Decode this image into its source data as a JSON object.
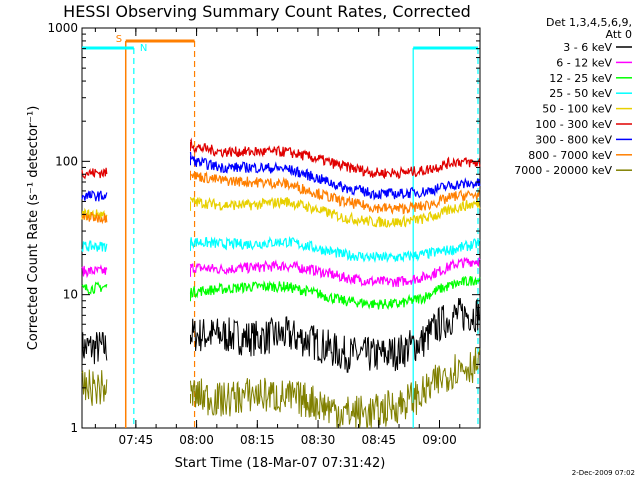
{
  "chart_data": {
    "type": "line",
    "title": "HESSI Observing Summary Count Rates, Corrected",
    "xlabel": "Start Time (18-Mar-07 07:31:42)",
    "ylabel": "Corrected Count Rate (s⁻¹ detector⁻¹)",
    "yscale": "log",
    "ylim": [
      1,
      1000
    ],
    "xlim": [
      "07:31:42",
      "09:10:00"
    ],
    "x_ticks": [
      "07:45",
      "08:00",
      "08:15",
      "08:30",
      "08:45",
      "09:00"
    ],
    "y_ticks": [
      "1",
      "10",
      "100",
      "1000"
    ],
    "legend_position": "top-right",
    "legend_header": [
      "Det 1,3,4,5,6,9,",
      "Att 0"
    ],
    "series": [
      {
        "name": "3 - 6 keV",
        "color": "#000000",
        "x": [
          "07:31:42",
          "07:38:00",
          "07:58:30",
          "08:06:00",
          "08:14:00",
          "08:22:00",
          "08:28:00",
          "08:36:00",
          "08:44:00",
          "08:50:00",
          "08:56:00",
          "09:00:00",
          "09:04:00",
          "09:09:00"
        ],
        "y": [
          4.0,
          4.0,
          5.0,
          5.0,
          4.7,
          5.0,
          4.5,
          3.6,
          3.5,
          3.7,
          4.5,
          6.0,
          7.0,
          7.2
        ]
      },
      {
        "name": "6 - 12 keV",
        "color": "#ff00ff",
        "x": [
          "07:31:42",
          "07:38:00",
          "07:58:30",
          "08:06:00",
          "08:14:00",
          "08:22:00",
          "08:28:00",
          "08:36:00",
          "08:44:00",
          "08:50:00",
          "08:56:00",
          "09:00:00",
          "09:04:00",
          "09:09:00"
        ],
        "y": [
          15,
          15,
          16,
          15.5,
          16,
          16.5,
          15.5,
          13.5,
          12.5,
          12.5,
          13.5,
          15,
          17,
          18
        ]
      },
      {
        "name": "12 - 25 keV",
        "color": "#00ff00",
        "x": [
          "07:31:42",
          "07:38:00",
          "07:58:30",
          "08:06:00",
          "08:14:00",
          "08:22:00",
          "08:28:00",
          "08:36:00",
          "08:44:00",
          "08:50:00",
          "08:56:00",
          "09:00:00",
          "09:04:00",
          "09:09:00"
        ],
        "y": [
          11,
          11.5,
          10.5,
          11,
          11.5,
          11.5,
          10.5,
          9,
          8.5,
          8.5,
          9.5,
          11,
          12,
          13
        ]
      },
      {
        "name": "25 - 50 keV",
        "color": "#00ffff",
        "x": [
          "07:31:42",
          "07:38:00",
          "07:58:30",
          "08:06:00",
          "08:14:00",
          "08:22:00",
          "08:28:00",
          "08:36:00",
          "08:44:00",
          "08:50:00",
          "08:56:00",
          "09:00:00",
          "09:04:00",
          "09:09:00"
        ],
        "y": [
          23,
          23,
          25,
          24,
          24,
          25,
          23,
          20,
          19,
          19,
          20,
          21,
          22,
          24
        ]
      },
      {
        "name": "50 - 100 keV",
        "color": "#e8d000",
        "x": [
          "07:31:42",
          "07:38:00",
          "07:58:30",
          "08:06:00",
          "08:14:00",
          "08:22:00",
          "08:28:00",
          "08:36:00",
          "08:44:00",
          "08:50:00",
          "08:56:00",
          "09:00:00",
          "09:04:00",
          "09:09:00"
        ],
        "y": [
          40,
          40,
          50,
          47,
          47,
          50,
          45,
          38,
          35,
          35,
          37,
          40,
          45,
          48
        ]
      },
      {
        "name": "100 - 300 keV",
        "color": "#e00000",
        "x": [
          "07:31:42",
          "07:38:00",
          "07:58:30",
          "07:59:30",
          "08:06:00",
          "08:14:00",
          "08:22:00",
          "08:28:00",
          "08:36:00",
          "08:44:00",
          "08:50:00",
          "08:56:00",
          "09:00:00",
          "09:04:00",
          "09:09:00"
        ],
        "y": [
          82,
          82,
          140,
          128,
          118,
          118,
          118,
          108,
          92,
          82,
          82,
          85,
          92,
          100,
          97
        ]
      },
      {
        "name": "300 - 800 keV",
        "color": "#0000ff",
        "x": [
          "07:31:42",
          "07:38:00",
          "07:58:30",
          "07:59:30",
          "08:06:00",
          "08:14:00",
          "08:22:00",
          "08:28:00",
          "08:36:00",
          "08:44:00",
          "08:50:00",
          "08:56:00",
          "09:00:00",
          "09:04:00",
          "09:09:00"
        ],
        "y": [
          55,
          55,
          110,
          100,
          90,
          90,
          88,
          78,
          64,
          57,
          57,
          59,
          63,
          67,
          68
        ]
      },
      {
        "name": "800 - 7000 keV",
        "color": "#ff7f00",
        "x": [
          "07:31:42",
          "07:38:00",
          "07:58:30",
          "07:59:30",
          "08:06:00",
          "08:14:00",
          "08:22:00",
          "08:28:00",
          "08:36:00",
          "08:44:00",
          "08:50:00",
          "08:56:00",
          "09:00:00",
          "09:04:00",
          "09:09:00"
        ],
        "y": [
          38,
          38,
          85,
          78,
          72,
          70,
          68,
          60,
          50,
          45,
          44,
          46,
          50,
          55,
          56
        ]
      },
      {
        "name": "7000 - 20000 keV",
        "color": "#808000",
        "x": [
          "07:31:42",
          "07:38:00",
          "07:58:30",
          "08:06:00",
          "08:14:00",
          "08:22:00",
          "08:28:00",
          "08:36:00",
          "08:44:00",
          "08:50:00",
          "08:56:00",
          "09:00:00",
          "09:04:00",
          "09:09:00"
        ],
        "y": [
          2.0,
          2.0,
          1.8,
          1.6,
          1.8,
          1.7,
          1.6,
          1.3,
          1.3,
          1.5,
          1.8,
          2.3,
          2.8,
          3.0
        ]
      }
    ],
    "annotations": [
      {
        "label": "S",
        "color": "#ff7f00",
        "start": "07:42:30",
        "end": "07:59:30"
      },
      {
        "label": "N",
        "color": "#00ffff",
        "start": "07:31:42",
        "end": "07:44:30"
      },
      {
        "label": "",
        "color": "#00ffff",
        "start": "08:53:30",
        "end": "09:09:30"
      }
    ]
  },
  "footer": {
    "date": "2-Dec-2009 07:02"
  }
}
